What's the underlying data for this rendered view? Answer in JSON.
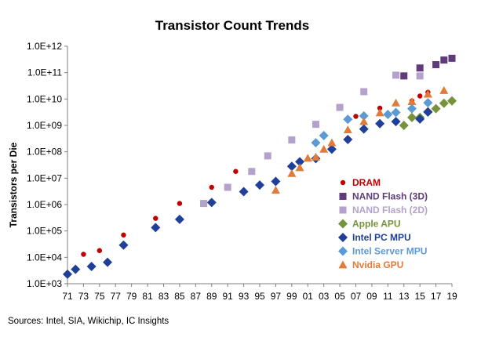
{
  "chart_data": {
    "type": "scatter",
    "title": "Transistor Count Trends",
    "ylabel": "Transistors per Die",
    "xlabel": "",
    "y_scale": "log",
    "ylim": [
      1000,
      1000000000000
    ],
    "xlim": [
      1971,
      2019
    ],
    "y_tick_labels": [
      "1.0E+03",
      "1.0E+04",
      "1.0E+05",
      "1.0E+06",
      "1.0E+07",
      "1.0E+08",
      "1.0E+09",
      "1.0E+10",
      "1.0E+11",
      "1.0E+12"
    ],
    "x_tick_labels": [
      "71",
      "73",
      "75",
      "77",
      "79",
      "81",
      "83",
      "85",
      "87",
      "89",
      "91",
      "93",
      "95",
      "97",
      "99",
      "01",
      "03",
      "05",
      "07",
      "09",
      "11",
      "13",
      "15",
      "17",
      "19"
    ],
    "grid": false,
    "legend_position": "lower-right",
    "source": "Sources:  Intel, SIA, Wikichip, IC Insights",
    "series": [
      {
        "name": "DRAM",
        "color": "#c00000",
        "marker": "circle",
        "points": [
          [
            1973,
            13000
          ],
          [
            1975,
            18000
          ],
          [
            1978,
            70000
          ],
          [
            1982,
            300000
          ],
          [
            1985,
            1100000
          ],
          [
            1989,
            4500000
          ],
          [
            1992,
            18000000
          ],
          [
            1996,
            70000000
          ],
          [
            1999,
            280000000
          ],
          [
            2002,
            1100000000
          ],
          [
            2007,
            2200000000
          ],
          [
            2010,
            4500000000
          ],
          [
            2014,
            8500000000
          ],
          [
            2015,
            13000000000
          ],
          [
            2016,
            18000000000
          ]
        ]
      },
      {
        "name": "NAND Flash (3D)",
        "color": "#5f3b7a",
        "marker": "square",
        "points": [
          [
            2013,
            75000000000
          ],
          [
            2015,
            150000000000
          ],
          [
            2017,
            200000000000
          ],
          [
            2018,
            300000000000
          ],
          [
            2019,
            350000000000
          ]
        ]
      },
      {
        "name": "NAND Flash (2D)",
        "color": "#b4a2cc",
        "marker": "square",
        "points": [
          [
            1988,
            1100000
          ],
          [
            1991,
            4500000
          ],
          [
            1994,
            18000000
          ],
          [
            1996,
            70000000
          ],
          [
            1999,
            280000000
          ],
          [
            2002,
            1100000000
          ],
          [
            2005,
            4800000000
          ],
          [
            2008,
            19000000000
          ],
          [
            2012,
            80000000000
          ],
          [
            2015,
            75000000000
          ]
        ]
      },
      {
        "name": "Apple APU",
        "color": "#76923c",
        "marker": "diamond",
        "points": [
          [
            2013,
            1000000000
          ],
          [
            2014,
            2000000000
          ],
          [
            2015,
            2000000000
          ],
          [
            2016,
            3300000000
          ],
          [
            2017,
            4300000000
          ],
          [
            2018,
            6900000000
          ],
          [
            2019,
            8500000000
          ]
        ]
      },
      {
        "name": "Intel PC MPU",
        "color": "#1f3f99",
        "marker": "diamond",
        "points": [
          [
            1971,
            2300
          ],
          [
            1972,
            3500
          ],
          [
            1974,
            4500
          ],
          [
            1976,
            6500
          ],
          [
            1978,
            29000
          ],
          [
            1982,
            134000
          ],
          [
            1985,
            275000
          ],
          [
            1989,
            1200000
          ],
          [
            1993,
            3100000
          ],
          [
            1995,
            5500000
          ],
          [
            1997,
            7500000
          ],
          [
            1999,
            28000000
          ],
          [
            2000,
            42000000
          ],
          [
            2002,
            55000000
          ],
          [
            2004,
            125000000
          ],
          [
            2006,
            291000000
          ],
          [
            2008,
            731000000
          ],
          [
            2010,
            1170000000
          ],
          [
            2012,
            1400000000
          ],
          [
            2015,
            1750000000
          ],
          [
            2016,
            3200000000
          ]
        ]
      },
      {
        "name": "Intel Server MPU",
        "color": "#5b9bd5",
        "marker": "diamond",
        "points": [
          [
            2002,
            220000000
          ],
          [
            2003,
            410000000
          ],
          [
            2006,
            1700000000
          ],
          [
            2008,
            2300000000
          ],
          [
            2011,
            2600000000
          ],
          [
            2012,
            3100000000
          ],
          [
            2014,
            4300000000
          ],
          [
            2016,
            7200000000
          ]
        ]
      },
      {
        "name": "Nvidia GPU",
        "color": "#e07b39",
        "marker": "triangle",
        "points": [
          [
            1997,
            3500000
          ],
          [
            1999,
            15000000
          ],
          [
            2000,
            25000000
          ],
          [
            2001,
            57000000
          ],
          [
            2002,
            63000000
          ],
          [
            2003,
            125000000
          ],
          [
            2004,
            220000000
          ],
          [
            2006,
            681000000
          ],
          [
            2008,
            1400000000
          ],
          [
            2010,
            3000000000
          ],
          [
            2012,
            7100000000
          ],
          [
            2014,
            8000000000
          ],
          [
            2016,
            15300000000
          ],
          [
            2018,
            21100000000
          ]
        ]
      }
    ]
  }
}
